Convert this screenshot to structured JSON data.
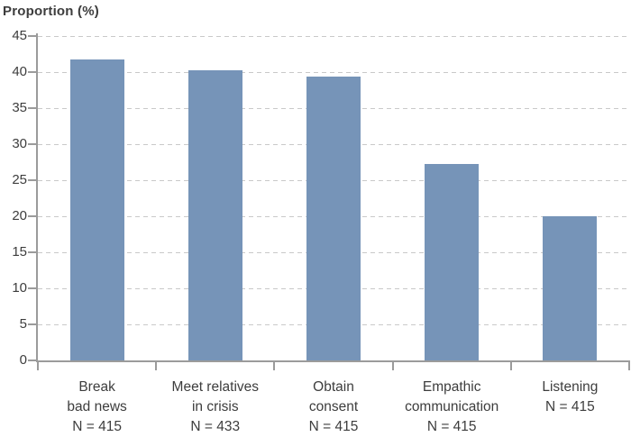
{
  "chart_data": {
    "type": "bar",
    "title": "Proportion (%)",
    "ylabel": "Proportion (%)",
    "xlabel": "",
    "categories": [
      "Break\nbad news\nN = 415",
      "Meet relatives\nin crisis\nN = 433",
      "Obtain\nconsent\nN = 415",
      "Empathic\ncommunication\nN = 415",
      "Listening\nN = 415"
    ],
    "values": [
      41.8,
      40.2,
      39.4,
      27.2,
      20.0
    ],
    "sample_sizes": [
      415,
      433,
      415,
      415,
      415
    ],
    "ylim": [
      0,
      45
    ],
    "y_ticks": [
      0,
      5,
      10,
      15,
      20,
      25,
      30,
      35,
      40,
      45
    ],
    "grid": "dashed-horizontal",
    "legend": "none",
    "bar_color": "#7694b8",
    "axis_color": "#9b9b9b",
    "grid_color": "#c9c9c9",
    "text_color": "#3d3d3d"
  }
}
